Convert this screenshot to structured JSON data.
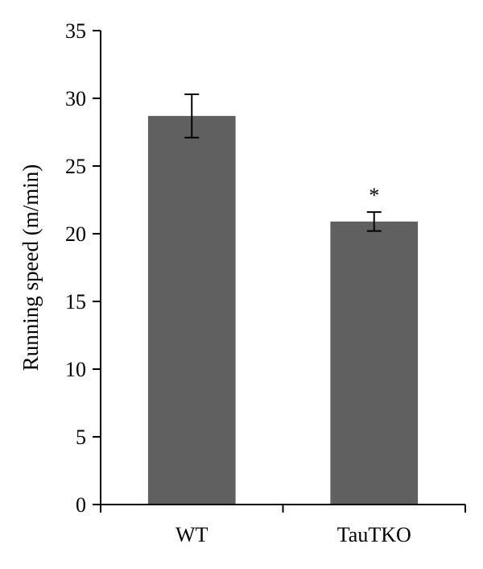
{
  "chart_data": {
    "type": "bar",
    "title": "",
    "xlabel": "",
    "ylabel": "Running speed (m/min)",
    "ylim": [
      0,
      35
    ],
    "yticks": [
      0,
      5,
      10,
      15,
      20,
      25,
      30,
      35
    ],
    "categories": [
      "WT",
      "TauTKO"
    ],
    "values": [
      28.7,
      20.9
    ],
    "error": [
      1.6,
      0.7
    ],
    "annotations": [
      "",
      "*"
    ],
    "bar_color": "#606060",
    "grid": false
  }
}
